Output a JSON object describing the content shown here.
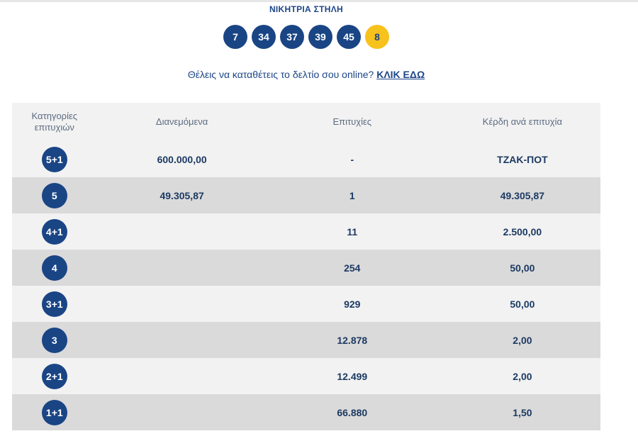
{
  "winning": {
    "title": "ΝΙΚΗΤΡΙΑ ΣΤΗΛΗ",
    "numbers": [
      "7",
      "34",
      "37",
      "39",
      "45"
    ],
    "joker": "8"
  },
  "cta": {
    "text": "Θέλεις να καταθέτεις το δελτίο σου online? ",
    "link": "ΚΛΙΚ ΕΔΩ"
  },
  "table": {
    "headers": {
      "category_line1": "Κατηγορίες",
      "category_line2": "επιτυχιών",
      "distributed": "Διανεμόμενα",
      "winners": "Επιτυχίες",
      "prize": "Κέρδη ανά επιτυχία"
    },
    "rows": [
      {
        "category": "5+1",
        "distributed": "600.000,00",
        "winners": "-",
        "prize": "ΤΖΑΚ-ΠΟΤ"
      },
      {
        "category": "5",
        "distributed": "49.305,87",
        "winners": "1",
        "prize": "49.305,87"
      },
      {
        "category": "4+1",
        "distributed": "",
        "winners": "11",
        "prize": "2.500,00"
      },
      {
        "category": "4",
        "distributed": "",
        "winners": "254",
        "prize": "50,00"
      },
      {
        "category": "3+1",
        "distributed": "",
        "winners": "929",
        "prize": "50,00"
      },
      {
        "category": "3",
        "distributed": "",
        "winners": "12.878",
        "prize": "2,00"
      },
      {
        "category": "2+1",
        "distributed": "",
        "winners": "12.499",
        "prize": "2,00"
      },
      {
        "category": "1+1",
        "distributed": "",
        "winners": "66.880",
        "prize": "1,50"
      }
    ]
  },
  "colors": {
    "primary_blue": "#1a4585",
    "joker_yellow": "#f7c21c",
    "row_light": "#f2f2f2",
    "row_dark": "#dadada"
  }
}
